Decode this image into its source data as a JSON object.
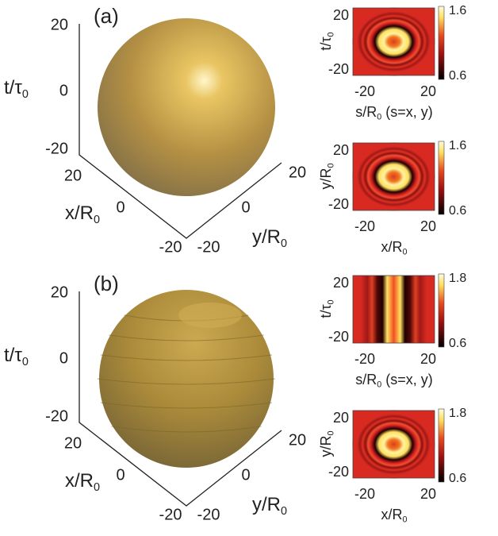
{
  "panels": [
    {
      "label": "(a)",
      "iso": {
        "z_label": {
          "main": "t/τ",
          "sub": "0"
        },
        "z_ticks": [
          20,
          0,
          -20
        ],
        "x_label": {
          "main": "x/R",
          "sub": "0"
        },
        "x_ticks": [
          20,
          0,
          -20
        ],
        "y_label": {
          "main": "y/R",
          "sub": "0"
        },
        "y_ticks": [
          -20,
          0,
          20
        ]
      },
      "maps": [
        {
          "y_label": {
            "main": "t/τ",
            "sub": "0"
          },
          "y_ticks": [
            20,
            -20
          ],
          "x_ticks": [
            -20,
            20
          ],
          "x_label": {
            "main": "s/R",
            "sub": "0",
            "rest": " (s=x, y)"
          },
          "colorbar_ticks": [
            1.6,
            0.6
          ]
        },
        {
          "y_label": {
            "main": "y/R",
            "sub": "0"
          },
          "y_ticks": [
            20,
            -20
          ],
          "x_ticks": [
            -20,
            20
          ],
          "x_label": {
            "main": "x/R",
            "sub": "0",
            "rest": ""
          },
          "colorbar_ticks": [
            1.6,
            0.6
          ]
        }
      ]
    },
    {
      "label": "(b)",
      "iso": {
        "z_label": {
          "main": "t/τ",
          "sub": "0"
        },
        "z_ticks": [
          20,
          0,
          -20
        ],
        "x_label": {
          "main": "x/R",
          "sub": "0"
        },
        "x_ticks": [
          20,
          0,
          -20
        ],
        "y_label": {
          "main": "y/R",
          "sub": "0"
        },
        "y_ticks": [
          -20,
          0,
          20
        ]
      },
      "maps": [
        {
          "y_label": {
            "main": "t/τ",
            "sub": "0"
          },
          "y_ticks": [
            20,
            -20
          ],
          "x_ticks": [
            -20,
            20
          ],
          "x_label": {
            "main": "s/R",
            "sub": "0",
            "rest": " (s=x, y)"
          },
          "colorbar_ticks": [
            1.8,
            0.6
          ]
        },
        {
          "y_label": {
            "main": "y/R",
            "sub": "0"
          },
          "y_ticks": [
            20,
            -20
          ],
          "x_ticks": [
            -20,
            20
          ],
          "x_label": {
            "main": "x/R",
            "sub": "0",
            "rest": ""
          },
          "colorbar_ticks": [
            1.8,
            0.6
          ]
        }
      ]
    }
  ]
}
